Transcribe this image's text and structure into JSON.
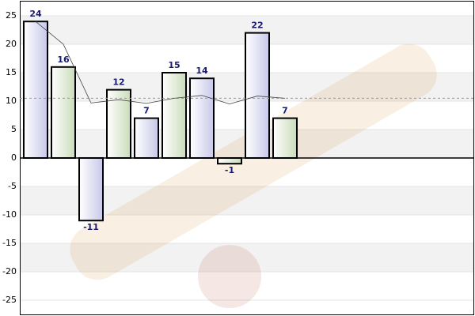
{
  "chart_data": {
    "type": "bar",
    "categories": [
      null,
      null,
      null,
      null,
      null,
      null,
      null,
      null,
      null,
      null
    ],
    "values": [
      24,
      16,
      -11,
      12,
      7,
      15,
      14,
      -1,
      22,
      7
    ],
    "colors": [
      "#d6d6ee",
      "#d8e6cc"
    ],
    "line": {
      "values": [
        24,
        20,
        9.67,
        10.25,
        9.6,
        10.5,
        11,
        9.5,
        10.89,
        10.5
      ],
      "color": "#444444"
    },
    "reference_line": {
      "value": 10.5,
      "color": "#999999"
    },
    "label_color": "#1a1a6e",
    "ylim": [
      -27.5,
      27.5
    ],
    "yticks": [
      25,
      20,
      15,
      10,
      5,
      0,
      -5,
      -10,
      -15,
      -20,
      -25
    ],
    "grid": true
  }
}
